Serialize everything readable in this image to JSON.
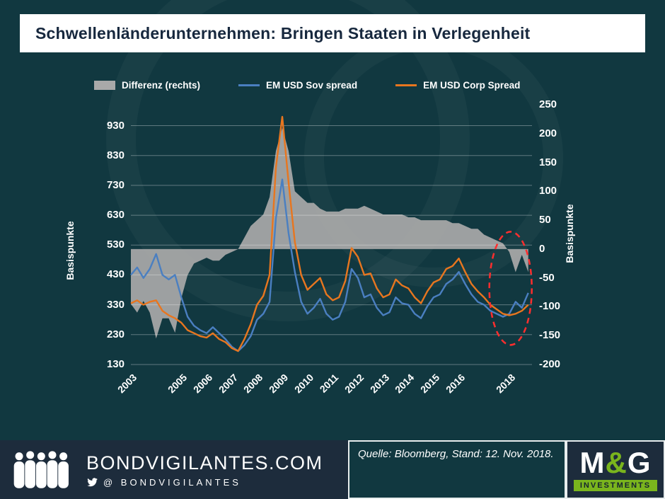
{
  "title": "Schwellenländerunternehmen: Bringen Staaten in Verlegenheit",
  "colors": {
    "background": "#113840",
    "banner_bg": "#ffffff",
    "banner_text": "#17283e",
    "area": "#a9a9a9",
    "sov_line": "#4a7fc1",
    "corp_line": "#e8761f",
    "annotation": "#ff2e2e",
    "footer_bg": "#1d2c3c",
    "brand_green": "#7ab51d"
  },
  "legend": [
    {
      "label": "Differenz (rechts)",
      "type": "area",
      "color": "#a9a9a9"
    },
    {
      "label": "EM USD Sov spread",
      "type": "line",
      "color": "#4a7fc1"
    },
    {
      "label": "EM USD Corp Spread",
      "type": "line",
      "color": "#e8761f"
    }
  ],
  "axes": {
    "left_label": "Basispunkte",
    "right_label": "Basispunkte",
    "left_ticks": [
      930,
      830,
      730,
      630,
      530,
      430,
      330,
      230,
      130
    ],
    "right_ticks": [
      250,
      200,
      150,
      100,
      50,
      0,
      -50,
      -100,
      -150,
      -200
    ],
    "x_ticks": [
      2003,
      2005,
      2006,
      2007,
      2008,
      2009,
      2010,
      2011,
      2012,
      2013,
      2014,
      2015,
      2016,
      2018
    ]
  },
  "chart_data": {
    "type": "line",
    "title": "Schwellenländerunternehmen: Bringen Staaten in Verlegenheit",
    "xlabel": "",
    "ylabel_left": "Basispunkte",
    "ylabel_right": "Basispunkte",
    "xlim": [
      2003,
      2018.9
    ],
    "left_ylim": [
      130,
      1000
    ],
    "right_ylim": [
      -200,
      250
    ],
    "grid": true,
    "legend_position": "top",
    "x": [
      2003,
      2003.25,
      2003.5,
      2003.75,
      2004,
      2004.25,
      2004.5,
      2004.75,
      2005,
      2005.25,
      2005.5,
      2005.75,
      2006,
      2006.25,
      2006.5,
      2006.75,
      2007,
      2007.25,
      2007.5,
      2007.75,
      2008,
      2008.25,
      2008.5,
      2008.75,
      2009,
      2009.25,
      2009.5,
      2009.75,
      2010,
      2010.25,
      2010.5,
      2010.75,
      2011,
      2011.25,
      2011.5,
      2011.75,
      2012,
      2012.25,
      2012.5,
      2012.75,
      2013,
      2013.25,
      2013.5,
      2013.75,
      2014,
      2014.25,
      2014.5,
      2014.75,
      2015,
      2015.25,
      2015.5,
      2015.75,
      2016,
      2016.25,
      2016.5,
      2016.75,
      2017,
      2017.25,
      2017.5,
      2017.75,
      2018,
      2018.25,
      2018.5,
      2018.75
    ],
    "series": [
      {
        "name": "Differenz (rechts)",
        "type": "area",
        "axis": "right",
        "color": "#a9a9a9",
        "values": [
          -95,
          -110,
          -90,
          -110,
          -155,
          -120,
          -120,
          -145,
          -85,
          -45,
          -25,
          -20,
          -15,
          -20,
          -20,
          -10,
          -5,
          0,
          20,
          40,
          50,
          60,
          90,
          170,
          210,
          170,
          100,
          90,
          80,
          80,
          70,
          65,
          65,
          65,
          70,
          70,
          70,
          75,
          70,
          65,
          60,
          60,
          60,
          60,
          55,
          55,
          50,
          50,
          50,
          50,
          50,
          45,
          45,
          40,
          35,
          35,
          25,
          20,
          15,
          10,
          -5,
          -40,
          -10,
          -40
        ]
      },
      {
        "name": "EM USD Sov spread",
        "type": "line",
        "axis": "left",
        "color": "#4a7fc1",
        "values": [
          430,
          455,
          420,
          450,
          500,
          430,
          415,
          430,
          355,
          290,
          260,
          245,
          235,
          255,
          235,
          215,
          190,
          175,
          195,
          225,
          280,
          300,
          340,
          620,
          750,
          570,
          440,
          340,
          300,
          320,
          350,
          300,
          280,
          290,
          340,
          450,
          420,
          355,
          365,
          320,
          295,
          305,
          355,
          335,
          330,
          300,
          285,
          325,
          355,
          365,
          400,
          415,
          440,
          400,
          365,
          340,
          330,
          310,
          300,
          290,
          300,
          340,
          320,
          370
        ]
      },
      {
        "name": "EM USD Corp Spread",
        "type": "line",
        "axis": "left",
        "color": "#e8761f",
        "values": [
          335,
          345,
          330,
          340,
          345,
          310,
          295,
          285,
          270,
          245,
          235,
          225,
          220,
          235,
          215,
          205,
          185,
          175,
          215,
          265,
          330,
          360,
          430,
          790,
          960,
          740,
          540,
          430,
          380,
          400,
          420,
          365,
          345,
          355,
          410,
          520,
          490,
          430,
          435,
          385,
          355,
          365,
          415,
          395,
          385,
          355,
          335,
          375,
          405,
          415,
          450,
          460,
          485,
          440,
          400,
          375,
          355,
          330,
          315,
          300,
          295,
          300,
          310,
          330
        ]
      }
    ],
    "annotation": {
      "shape": "dashed-ellipse",
      "x": 2018.05,
      "y_left": 385,
      "color": "#ff2e2e"
    }
  },
  "footer": {
    "site": "BONDVIGILANTES.COM",
    "twitter_handle": "@ BONDVIGILANTES",
    "source": "Quelle: Bloomberg, Stand: 12. Nov. 2018.",
    "logo": {
      "m": "M",
      "amp": "&",
      "g": "G",
      "sub": "INVESTMENTS"
    }
  }
}
